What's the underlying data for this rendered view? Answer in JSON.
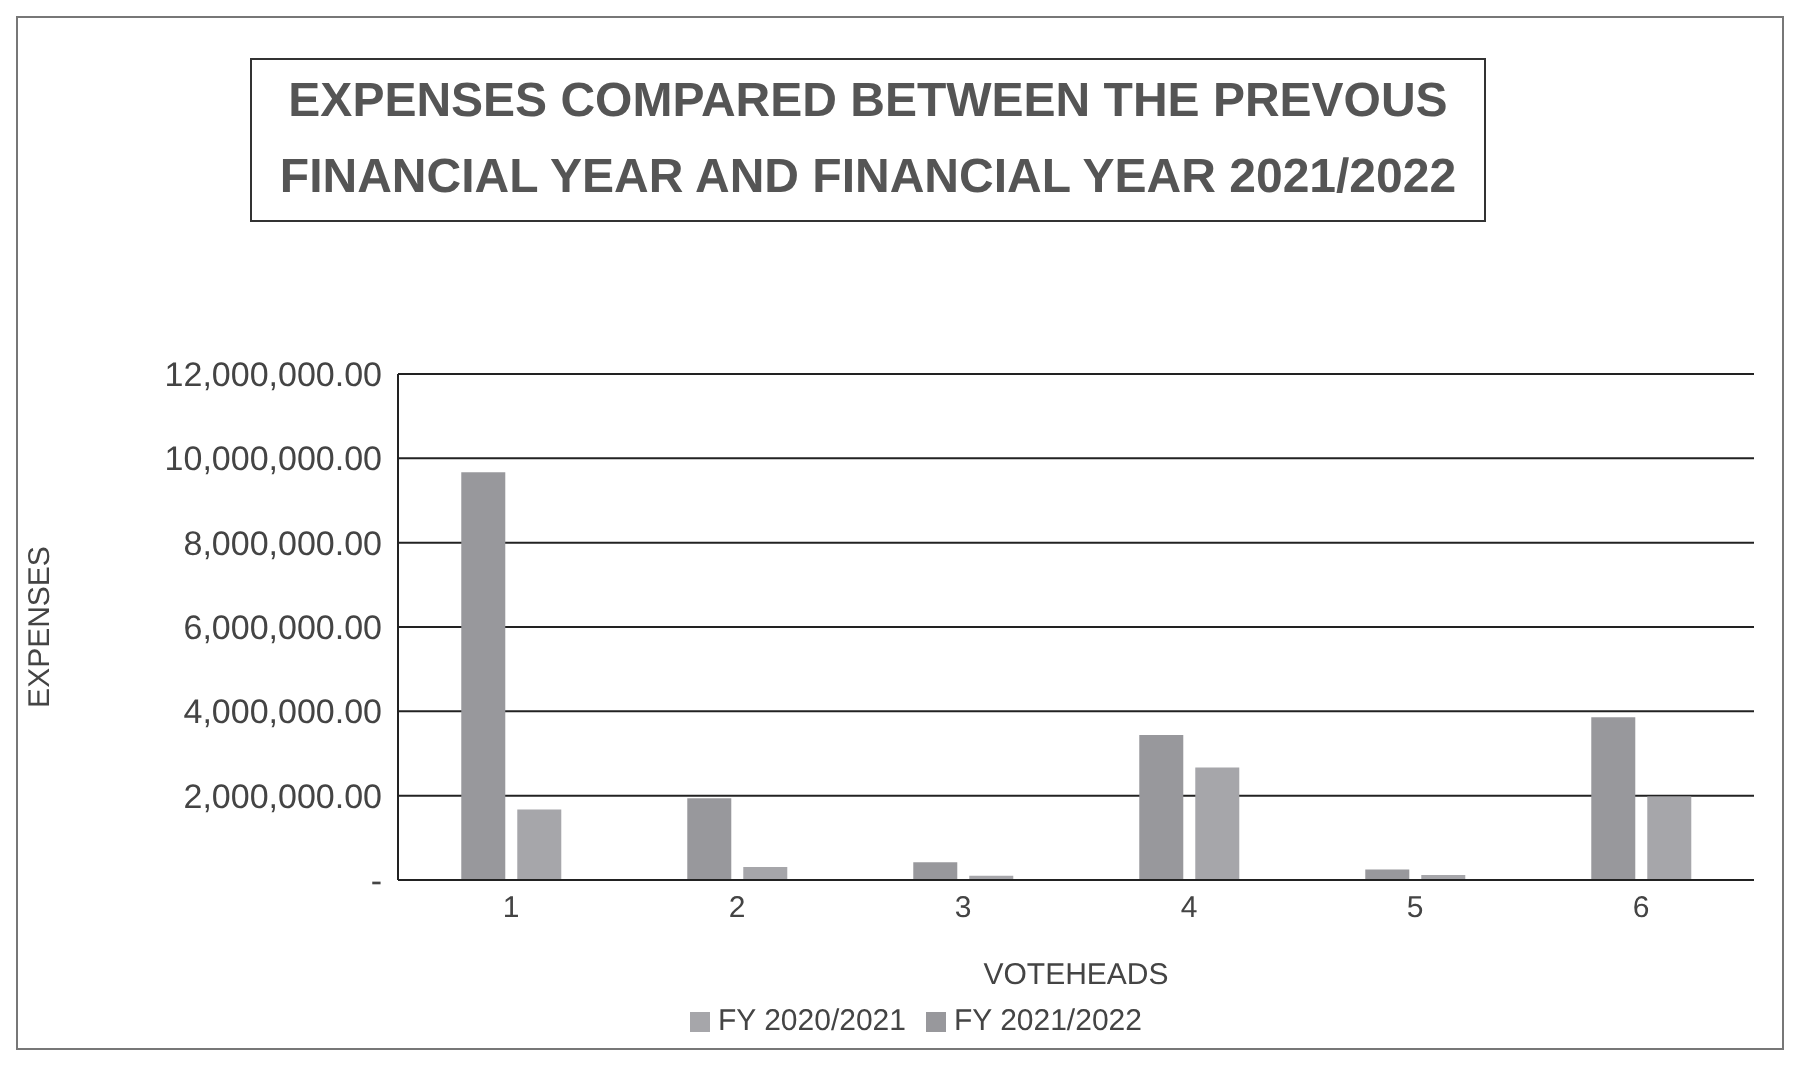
{
  "chart_data": {
    "type": "bar",
    "title": "EXPENSES COMPARED BETWEEN THE PREVOUS FINANCIAL YEAR AND FINANCIAL YEAR 2021/2022",
    "xlabel": "VOTEHEADS",
    "ylabel": "EXPENSES",
    "categories": [
      "1",
      "2",
      "3",
      "4",
      "5",
      "6"
    ],
    "series": [
      {
        "name": "FY 2021/2022",
        "color": "#98989c",
        "values": [
          9670000,
          1940000,
          420000,
          3440000,
          250000,
          3860000
        ]
      },
      {
        "name": "FY 2020/2021",
        "color": "#a6a6aa",
        "values": [
          1670000,
          310000,
          100000,
          2670000,
          120000,
          1980000
        ]
      }
    ],
    "ylim": [
      0,
      12000000
    ],
    "yticks": [
      {
        "value": 0,
        "label": "-"
      },
      {
        "value": 2000000,
        "label": "2,000,000.00"
      },
      {
        "value": 4000000,
        "label": "4,000,000.00"
      },
      {
        "value": 6000000,
        "label": "6,000,000.00"
      },
      {
        "value": 8000000,
        "label": "8,000,000.00"
      },
      {
        "value": 10000000,
        "label": "10,000,000.00"
      },
      {
        "value": 12000000,
        "label": "12,000,000.00"
      }
    ],
    "grid": "y",
    "legend": "bottom"
  }
}
